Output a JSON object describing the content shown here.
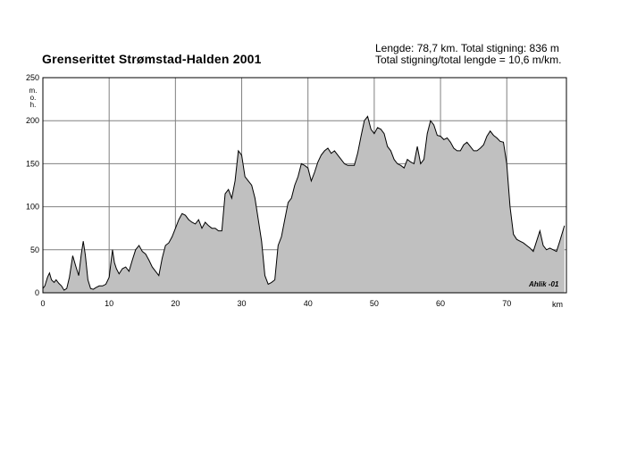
{
  "chart_data": {
    "type": "area",
    "title": "Grenserittet Strømstad-Halden 2001",
    "info_line1": "Lengde: 78,7 km.  Total stigning: 836 m",
    "info_line2": "Total stigning/total lengde = 10,6 m/km.",
    "ylabel": "m.o.h.",
    "xlabel": "km",
    "signature": "Ahlik -01",
    "xlim": [
      0,
      79
    ],
    "ylim": [
      0,
      250
    ],
    "grid": true,
    "fill_color": "#c0c0c0",
    "line_color": "#000000",
    "x_ticks": [
      "0",
      "10",
      "20",
      "30",
      "40",
      "50",
      "60",
      "70"
    ],
    "y_ticks": [
      "0",
      "50",
      "100",
      "150",
      "200",
      "250"
    ],
    "x": [
      0,
      0.3,
      0.7,
      1.0,
      1.3,
      1.7,
      2.0,
      2.4,
      2.8,
      3.2,
      3.6,
      4.0,
      4.5,
      5.0,
      5.4,
      5.8,
      6.1,
      6.4,
      6.8,
      7.2,
      7.6,
      8.0,
      8.5,
      9.0,
      9.5,
      10.0,
      10.5,
      10.8,
      11.1,
      11.5,
      12.0,
      12.5,
      13.0,
      13.5,
      14.0,
      14.5,
      15.0,
      15.5,
      16.0,
      16.5,
      17.0,
      17.5,
      18.0,
      18.5,
      19.0,
      19.5,
      20.0,
      20.5,
      21.0,
      21.5,
      22.0,
      22.5,
      23.0,
      23.5,
      24.0,
      24.5,
      25.0,
      25.5,
      26.0,
      26.5,
      27.0,
      27.5,
      28.0,
      28.5,
      29.0,
      29.5,
      30.0,
      30.5,
      31.0,
      31.5,
      32.0,
      32.5,
      33.0,
      33.5,
      34.0,
      34.5,
      35.0,
      35.5,
      36.0,
      36.5,
      37.0,
      37.5,
      38.0,
      38.5,
      39.0,
      39.5,
      40.0,
      40.5,
      41.0,
      41.5,
      42.0,
      42.5,
      43.0,
      43.5,
      44.0,
      44.5,
      45.0,
      45.5,
      46.0,
      46.5,
      47.0,
      47.5,
      48.0,
      48.5,
      49.0,
      49.5,
      50.0,
      50.5,
      51.0,
      51.5,
      52.0,
      52.5,
      53.0,
      53.5,
      54.0,
      54.5,
      55.0,
      55.5,
      56.0,
      56.5,
      57.0,
      57.5,
      58.0,
      58.5,
      59.0,
      59.5,
      60.0,
      60.5,
      61.0,
      61.5,
      62.0,
      62.5,
      63.0,
      63.5,
      64.0,
      64.5,
      65.0,
      65.5,
      66.0,
      66.5,
      67.0,
      67.5,
      68.0,
      68.5,
      69.0,
      69.5,
      70.0,
      70.5,
      71.0,
      71.5,
      72.0,
      72.5,
      73.0,
      73.5,
      74.0,
      74.5,
      75.0,
      75.5,
      76.0,
      76.5,
      77.0,
      77.5,
      78.0,
      78.7
    ],
    "values": [
      5,
      8,
      18,
      23,
      15,
      12,
      15,
      11,
      8,
      3,
      5,
      18,
      43,
      30,
      20,
      45,
      60,
      44,
      15,
      5,
      4,
      6,
      8,
      8,
      10,
      18,
      50,
      35,
      28,
      22,
      28,
      30,
      25,
      38,
      50,
      55,
      48,
      45,
      38,
      30,
      25,
      20,
      40,
      55,
      58,
      65,
      75,
      85,
      92,
      90,
      85,
      82,
      80,
      85,
      75,
      82,
      78,
      75,
      75,
      72,
      72,
      115,
      120,
      110,
      130,
      165,
      160,
      135,
      130,
      125,
      110,
      85,
      60,
      20,
      10,
      12,
      15,
      55,
      65,
      85,
      105,
      110,
      125,
      135,
      150,
      148,
      145,
      130,
      140,
      152,
      160,
      165,
      168,
      162,
      165,
      160,
      155,
      150,
      148,
      148,
      148,
      162,
      182,
      200,
      205,
      190,
      185,
      192,
      190,
      185,
      170,
      165,
      155,
      150,
      148,
      145,
      155,
      152,
      150,
      170,
      150,
      155,
      185,
      200,
      195,
      183,
      182,
      178,
      180,
      175,
      168,
      165,
      165,
      172,
      175,
      170,
      165,
      165,
      168,
      172,
      182,
      188,
      183,
      180,
      176,
      175,
      150,
      100,
      68,
      62,
      60,
      58,
      55,
      52,
      48,
      60,
      72,
      55,
      50,
      52,
      50,
      48,
      60,
      78
    ]
  }
}
